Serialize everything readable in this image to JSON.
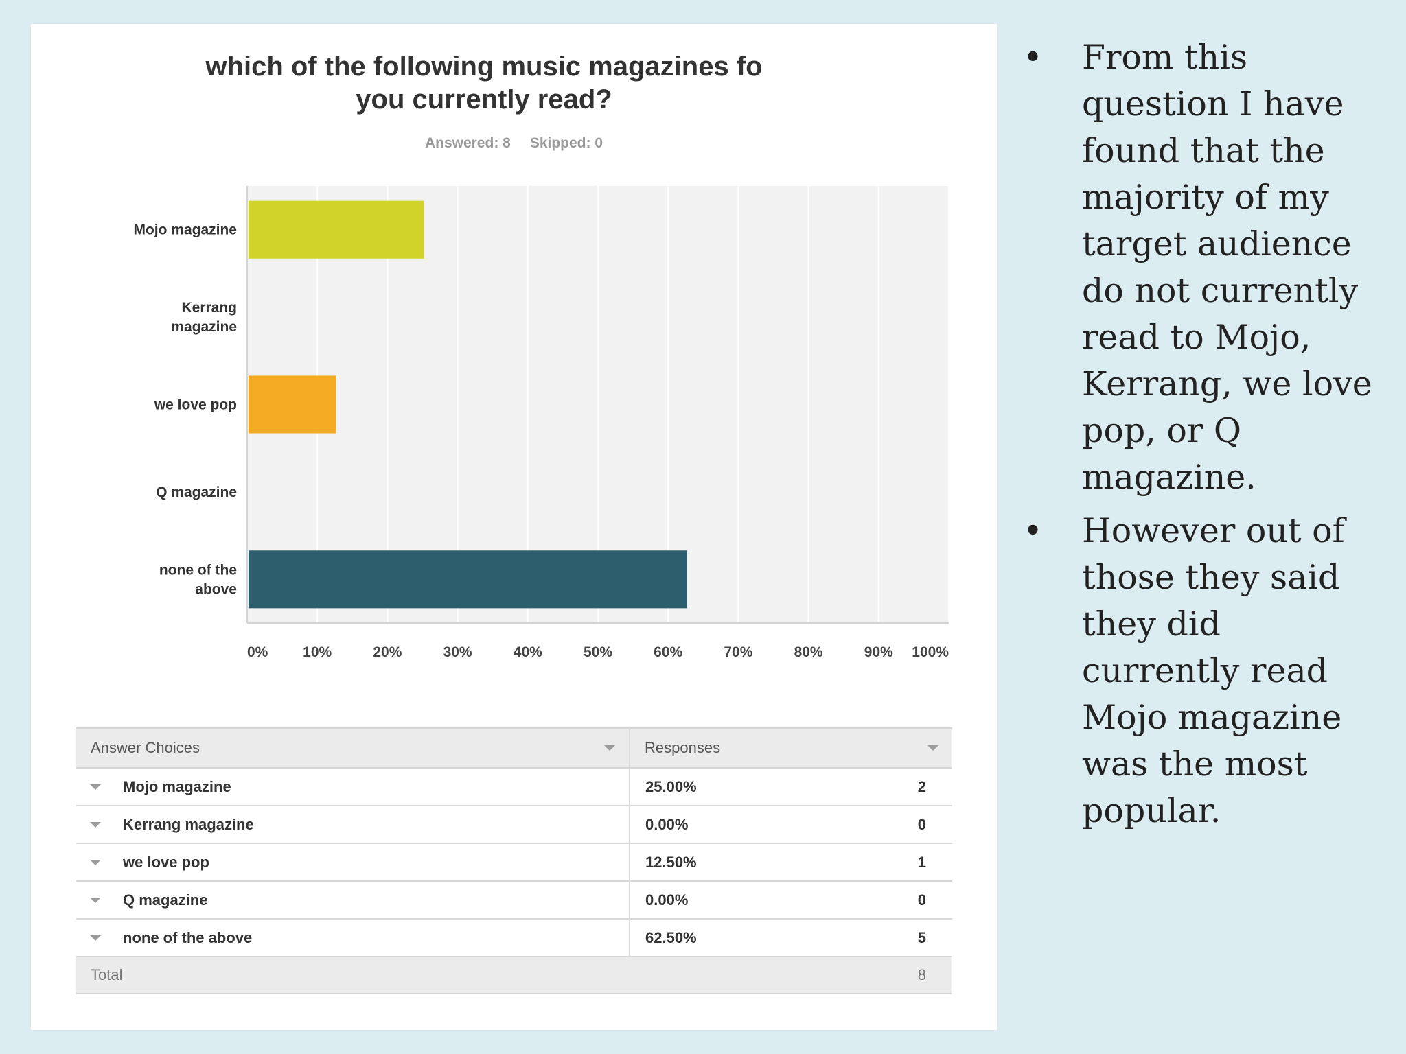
{
  "chart_data": {
    "type": "bar",
    "orientation": "horizontal",
    "title": "which of the following music magazines fo\nyou currently read?",
    "stats": {
      "answered": "Answered: 8",
      "skipped": "Skipped: 0"
    },
    "categories": [
      "Mojo magazine",
      "Kerrang\nmagazine",
      "we love pop",
      "Q magazine",
      "none of the\nabove"
    ],
    "values": [
      25.0,
      0.0,
      12.5,
      0.0,
      62.5
    ],
    "colors": [
      "#d0d32a",
      "#cccccc",
      "#f5aa23",
      "#cccccc",
      "#2d5e6d"
    ],
    "x_ticks": [
      "0%",
      "10%",
      "20%",
      "30%",
      "40%",
      "50%",
      "60%",
      "70%",
      "80%",
      "90%",
      "100%"
    ],
    "xlim": [
      0,
      100
    ],
    "grid": true,
    "xlabel": "",
    "ylabel": ""
  },
  "table": {
    "header": {
      "answer_choices": "Answer Choices",
      "responses": "Responses"
    },
    "rows": [
      {
        "label": "Mojo magazine",
        "percent": "25.00%",
        "count": "2"
      },
      {
        "label": "Kerrang magazine",
        "percent": "0.00%",
        "count": "0"
      },
      {
        "label": "we love pop",
        "percent": "12.50%",
        "count": "1"
      },
      {
        "label": "Q magazine",
        "percent": "0.00%",
        "count": "0"
      },
      {
        "label": "none of the above",
        "percent": "62.50%",
        "count": "5"
      }
    ],
    "total": {
      "label": "Total",
      "count": "8"
    }
  },
  "bullets": [
    "From this question I have found that the majority of my target audience do not currently read to Mojo, Kerrang, we love pop, or Q magazine.",
    "However out of those they said they did currently read Mojo magazine was the most popular."
  ]
}
